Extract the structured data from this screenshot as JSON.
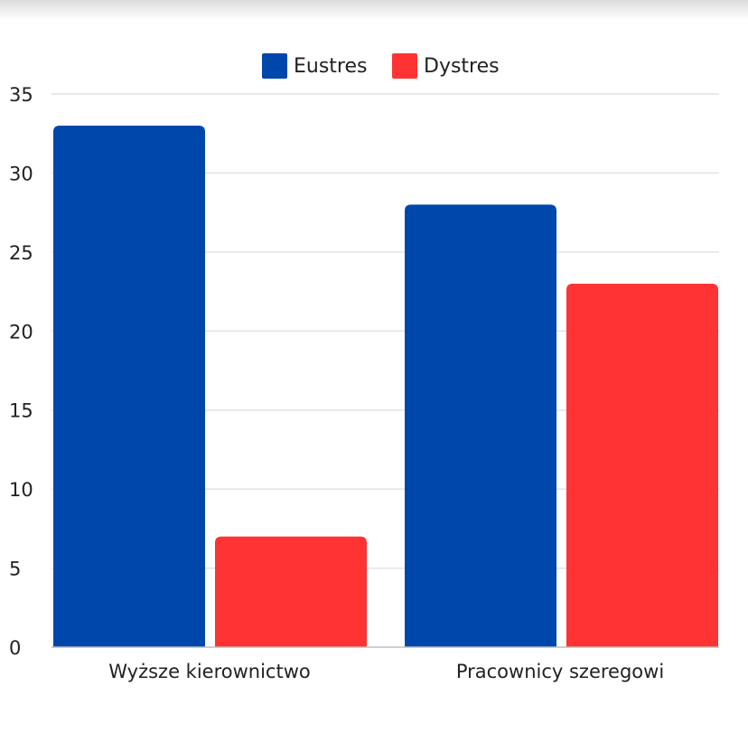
{
  "chart_data": {
    "type": "bar",
    "categories": [
      "Wyższe kierownictwo",
      "Pracownicy szeregowi"
    ],
    "series": [
      {
        "name": "Eustres",
        "values": [
          33,
          28
        ],
        "color": "#0047AB"
      },
      {
        "name": "Dystres",
        "values": [
          7,
          23
        ],
        "color": "#FF3333"
      }
    ],
    "title": "",
    "xlabel": "",
    "ylabel": "",
    "ylim": [
      0,
      35
    ],
    "yticks": [
      0,
      5,
      10,
      15,
      20,
      25,
      30,
      35
    ],
    "grid": true,
    "legend_position": "top-center"
  }
}
